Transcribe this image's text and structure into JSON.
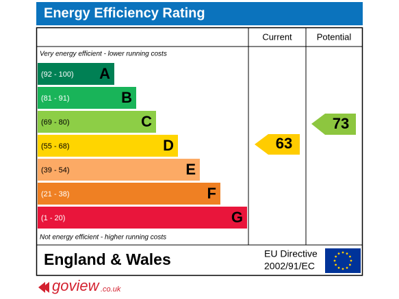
{
  "header": {
    "title": "Energy Efficiency Rating"
  },
  "columns": [
    "Current",
    "Potential"
  ],
  "top_note": "Very energy efficient - lower running costs",
  "bottom_note": "Not energy efficient - higher running costs",
  "bands": [
    {
      "range": "(92 - 100)",
      "letter": "A",
      "color": "#008054"
    },
    {
      "range": "(81 - 91)",
      "letter": "B",
      "color": "#19b459"
    },
    {
      "range": "(69 - 80)",
      "letter": "C",
      "color": "#8dce46"
    },
    {
      "range": "(55 - 68)",
      "letter": "D",
      "color": "#ffd500"
    },
    {
      "range": "(39 - 54)",
      "letter": "E",
      "color": "#fcaa65"
    },
    {
      "range": "(21 - 38)",
      "letter": "F",
      "color": "#ef8023"
    },
    {
      "range": "(1 - 20)",
      "letter": "G",
      "color": "#e9153b"
    }
  ],
  "current": {
    "value": 63,
    "color": "#ffcc00"
  },
  "potential": {
    "value": 73,
    "color": "#8dc63f"
  },
  "footer": {
    "region": "England & Wales",
    "directive": [
      "EU Directive",
      "2002/91/EC"
    ]
  },
  "logo": {
    "brand": "goview",
    "domain": ".co.uk"
  }
}
